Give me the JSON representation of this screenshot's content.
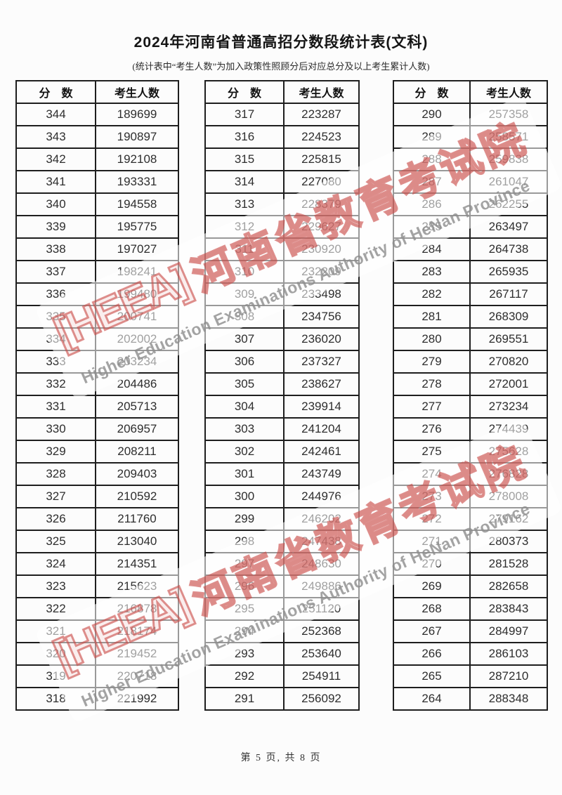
{
  "page": {
    "title": "2024年河南省普通高招分数段统计表(文科)",
    "subtitle": "(统计表中“考生人数”为加入政策性照顾分后对应总分及以上考生累计人数)",
    "footer": "第 5 页, 共 8 页"
  },
  "table_headers": {
    "score": "分　数",
    "count": "考生人数"
  },
  "watermark": {
    "seal": "[HEEA]",
    "cn": "河南省教育考试院",
    "en": "Higher Education Examinations Authority of HeNan Province",
    "red": "#cb4a46",
    "gray": "#8d8d8d"
  },
  "tables": [
    {
      "rows": [
        [
          344,
          189699
        ],
        [
          343,
          190897
        ],
        [
          342,
          192108
        ],
        [
          341,
          193331
        ],
        [
          340,
          194558
        ],
        [
          339,
          195775
        ],
        [
          338,
          197027
        ],
        [
          337,
          198241
        ],
        [
          336,
          199480
        ],
        [
          335,
          200741
        ],
        [
          334,
          202002
        ],
        [
          333,
          203234
        ],
        [
          332,
          204486
        ],
        [
          331,
          205713
        ],
        [
          330,
          206957
        ],
        [
          329,
          208211
        ],
        [
          328,
          209403
        ],
        [
          327,
          210592
        ],
        [
          326,
          211760
        ],
        [
          325,
          213040
        ],
        [
          324,
          214351
        ],
        [
          323,
          215623
        ],
        [
          322,
          216878
        ],
        [
          321,
          218174
        ],
        [
          320,
          219452
        ],
        [
          319,
          220718
        ],
        [
          318,
          221992
        ]
      ]
    },
    {
      "rows": [
        [
          317,
          223287
        ],
        [
          316,
          224523
        ],
        [
          315,
          225815
        ],
        [
          314,
          227080
        ],
        [
          313,
          228379
        ],
        [
          312,
          229627
        ],
        [
          311,
          230920
        ],
        [
          310,
          232209
        ],
        [
          309,
          233498
        ],
        [
          308,
          234756
        ],
        [
          307,
          236020
        ],
        [
          306,
          237327
        ],
        [
          305,
          238627
        ],
        [
          304,
          239914
        ],
        [
          303,
          241204
        ],
        [
          302,
          242461
        ],
        [
          301,
          243749
        ],
        [
          300,
          244976
        ],
        [
          299,
          246202
        ],
        [
          298,
          247438
        ],
        [
          297,
          248630
        ],
        [
          296,
          249886
        ],
        [
          295,
          251120
        ],
        [
          294,
          252368
        ],
        [
          293,
          253640
        ],
        [
          292,
          254911
        ],
        [
          291,
          256092
        ]
      ]
    },
    {
      "rows": [
        [
          290,
          257358
        ],
        [
          289,
          258571
        ],
        [
          288,
          259838
        ],
        [
          287,
          261047
        ],
        [
          286,
          262255
        ],
        [
          285,
          263497
        ],
        [
          284,
          264738
        ],
        [
          283,
          265935
        ],
        [
          282,
          267117
        ],
        [
          281,
          268309
        ],
        [
          280,
          269551
        ],
        [
          279,
          270820
        ],
        [
          278,
          272001
        ],
        [
          277,
          273234
        ],
        [
          276,
          274439
        ],
        [
          275,
          275628
        ],
        [
          274,
          276828
        ],
        [
          273,
          278008
        ],
        [
          272,
          279162
        ],
        [
          271,
          280373
        ],
        [
          270,
          281528
        ],
        [
          269,
          282658
        ],
        [
          268,
          283843
        ],
        [
          267,
          284997
        ],
        [
          266,
          286103
        ],
        [
          265,
          287210
        ],
        [
          264,
          288348
        ]
      ]
    }
  ]
}
